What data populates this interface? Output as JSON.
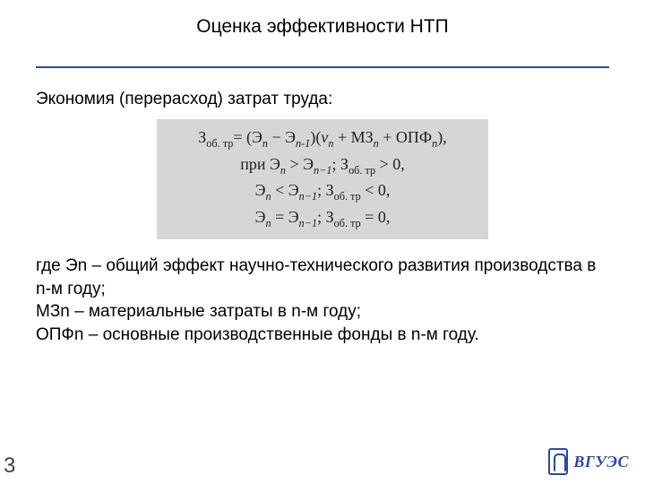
{
  "colors": {
    "rule": "#2a4aa0",
    "formula_bg": "#d6d6d6",
    "text": "#000000",
    "logo": "#2a4aa0"
  },
  "title": "Оценка эффективности НТП",
  "lead": "Экономия (перерасход) затрат труда:",
  "formula": {
    "line1_html": "З<span class='sub'>об. тр</span>= (Э<span class='sub ital'>n</span> − Э<span class='sub ital'>n-1</span>)(<span class='ital'>ν<span class='sub'>n</span></span> + МЗ<span class='sub ital'>n</span> + ОПФ<span class='sub ital'>n</span>),",
    "line2_html": "при Э<span class='sub ital'>n</span> &gt; Э<span class='sub ital'>n−1</span>; З<span class='sub'>об. тр</span> &gt; 0,",
    "line3_html": "Э<span class='sub ital'>n</span> &lt; Э<span class='sub ital'>n−1</span>; З<span class='sub'>об. тр</span> &lt; 0,",
    "line4_html": "Э<span class='sub ital'>n</span> = Э<span class='sub ital'>n−1</span>; З<span class='sub'>об. тр</span> = 0,"
  },
  "legend": {
    "l1": "где Эn – общий эффект научно-технического развития производства в n-м году;",
    "l2": "МЗn – материальные затраты в n-м году;",
    "l3": "ОПФn – основные производственные фонды в n-м году."
  },
  "page_number": "3",
  "logo_text": "ВГУЭС"
}
